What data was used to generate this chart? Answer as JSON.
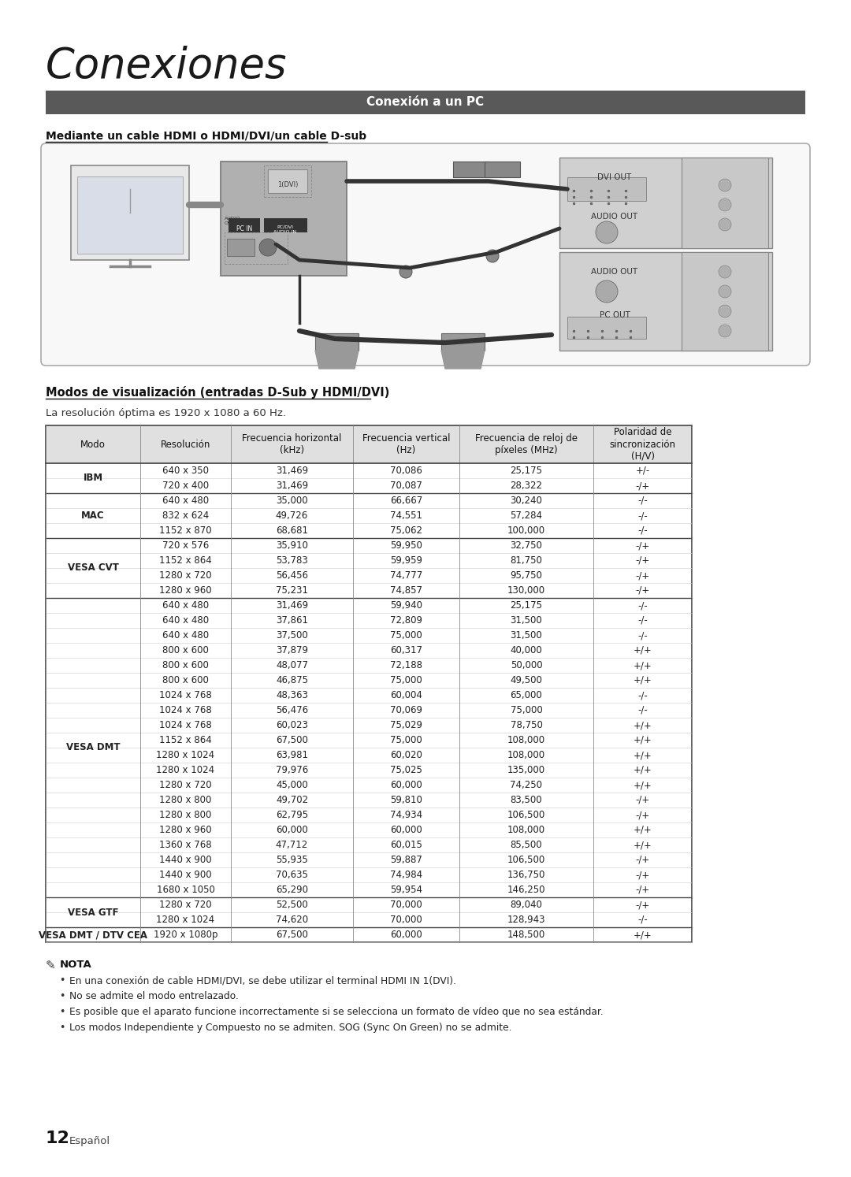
{
  "title": "Conexiones",
  "section_bar_text": "Conexión a un PC",
  "section_bar_color": "#595959",
  "section_bar_text_color": "#ffffff",
  "subtitle": "Mediante un cable HDMI o HDMI/DVI/un cable D-sub",
  "table_section_title": "Modos de visualización (entradas D-Sub y HDMI/DVI)",
  "table_subtitle": "La resolución óptima es 1920 x 1080 a 60 Hz.",
  "col_headers": [
    "Modo",
    "Resolución",
    "Frecuencia horizontal\n(kHz)",
    "Frecuencia vertical\n(Hz)",
    "Frecuencia de reloj de\npíxeles (MHz)",
    "Polaridad de\nsincronización\n(H/V)"
  ],
  "table_data": [
    [
      "IBM",
      "640 x 350",
      "31,469",
      "70,086",
      "25,175",
      "+/-"
    ],
    [
      "",
      "720 x 400",
      "31,469",
      "70,087",
      "28,322",
      "-/+"
    ],
    [
      "MAC",
      "640 x 480",
      "35,000",
      "66,667",
      "30,240",
      "-/-"
    ],
    [
      "",
      "832 x 624",
      "49,726",
      "74,551",
      "57,284",
      "-/-"
    ],
    [
      "",
      "1152 x 870",
      "68,681",
      "75,062",
      "100,000",
      "-/-"
    ],
    [
      "VESA CVT",
      "720 x 576",
      "35,910",
      "59,950",
      "32,750",
      "-/+"
    ],
    [
      "",
      "1152 x 864",
      "53,783",
      "59,959",
      "81,750",
      "-/+"
    ],
    [
      "",
      "1280 x 720",
      "56,456",
      "74,777",
      "95,750",
      "-/+"
    ],
    [
      "",
      "1280 x 960",
      "75,231",
      "74,857",
      "130,000",
      "-/+"
    ],
    [
      "VESA DMT",
      "640 x 480",
      "31,469",
      "59,940",
      "25,175",
      "-/-"
    ],
    [
      "",
      "640 x 480",
      "37,861",
      "72,809",
      "31,500",
      "-/-"
    ],
    [
      "",
      "640 x 480",
      "37,500",
      "75,000",
      "31,500",
      "-/-"
    ],
    [
      "",
      "800 x 600",
      "37,879",
      "60,317",
      "40,000",
      "+/+"
    ],
    [
      "",
      "800 x 600",
      "48,077",
      "72,188",
      "50,000",
      "+/+"
    ],
    [
      "",
      "800 x 600",
      "46,875",
      "75,000",
      "49,500",
      "+/+"
    ],
    [
      "",
      "1024 x 768",
      "48,363",
      "60,004",
      "65,000",
      "-/-"
    ],
    [
      "",
      "1024 x 768",
      "56,476",
      "70,069",
      "75,000",
      "-/-"
    ],
    [
      "",
      "1024 x 768",
      "60,023",
      "75,029",
      "78,750",
      "+/+"
    ],
    [
      "",
      "1152 x 864",
      "67,500",
      "75,000",
      "108,000",
      "+/+"
    ],
    [
      "",
      "1280 x 1024",
      "63,981",
      "60,020",
      "108,000",
      "+/+"
    ],
    [
      "",
      "1280 x 1024",
      "79,976",
      "75,025",
      "135,000",
      "+/+"
    ],
    [
      "",
      "1280 x 720",
      "45,000",
      "60,000",
      "74,250",
      "+/+"
    ],
    [
      "",
      "1280 x 800",
      "49,702",
      "59,810",
      "83,500",
      "-/+"
    ],
    [
      "",
      "1280 x 800",
      "62,795",
      "74,934",
      "106,500",
      "-/+"
    ],
    [
      "",
      "1280 x 960",
      "60,000",
      "60,000",
      "108,000",
      "+/+"
    ],
    [
      "",
      "1360 x 768",
      "47,712",
      "60,015",
      "85,500",
      "+/+"
    ],
    [
      "",
      "1440 x 900",
      "55,935",
      "59,887",
      "106,500",
      "-/+"
    ],
    [
      "",
      "1440 x 900",
      "70,635",
      "74,984",
      "136,750",
      "-/+"
    ],
    [
      "",
      "1680 x 1050",
      "65,290",
      "59,954",
      "146,250",
      "-/+"
    ],
    [
      "VESA GTF",
      "1280 x 720",
      "52,500",
      "70,000",
      "89,040",
      "-/+"
    ],
    [
      "",
      "1280 x 1024",
      "74,620",
      "70,000",
      "128,943",
      "-/-"
    ],
    [
      "VESA DMT / DTV CEA",
      "1920 x 1080p",
      "67,500",
      "60,000",
      "148,500",
      "+/+"
    ]
  ],
  "note_title": "NOTA",
  "notes": [
    "En una conexión de cable HDMI/DVI, se debe utilizar el terminal HDMI IN 1(DVI).",
    "No se admite el modo entrelazado.",
    "Es posible que el aparato funcione incorrectamente si se selecciona un formato de vídeo que no sea estándar.",
    "Los modos Independiente y Compuesto no se admiten. SOG (Sync On Green) no se admite."
  ],
  "page_number": "12",
  "page_lang": "Español",
  "bg_color": "#ffffff",
  "table_header_bg": "#e0e0e0",
  "table_border_color": "#888888",
  "table_thick_border": "#444444"
}
